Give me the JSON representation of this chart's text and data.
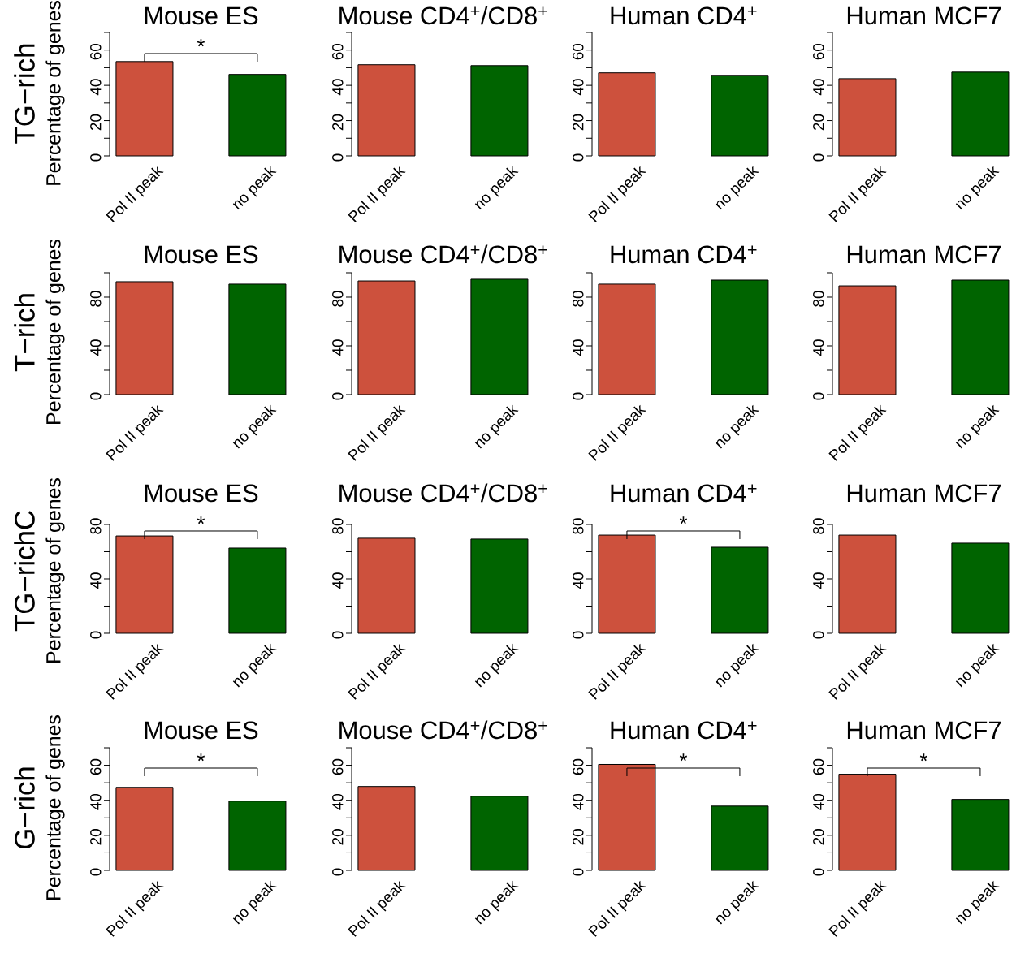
{
  "chart_data": [
    {
      "type": "bar",
      "title": "Mouse ES",
      "ylabel": "Percentage of genes",
      "categories": [
        "Pol II peak",
        "no peak"
      ],
      "values": [
        53.5,
        46.2
      ],
      "colors": [
        "#cd513d",
        "#006400"
      ],
      "ylim": [
        0,
        70
      ],
      "yticks": [
        0,
        {
          "value": 10,
          "label": null
        },
        20,
        {
          "value": 30,
          "label": null
        },
        40,
        {
          "value": 50,
          "label": null
        },
        60,
        {
          "value": 70,
          "label": null
        }
      ],
      "annotations": [
        "TG−rich",
        "*"
      ]
    },
    {
      "type": "bar",
      "title": "Mouse CD4$^{+}$/CD8$^{+}$",
      "categories": [
        "Pol II peak",
        "no peak"
      ],
      "values": [
        51.7,
        51.2
      ],
      "colors": [
        "#cd513d",
        "#006400"
      ],
      "ylim": [
        0,
        70
      ],
      "yticks": [
        0,
        {
          "value": 10,
          "label": null
        },
        20,
        {
          "value": 30,
          "label": null
        },
        40,
        {
          "value": 50,
          "label": null
        },
        60,
        {
          "value": 70,
          "label": null
        }
      ]
    },
    {
      "type": "bar",
      "title": "Human CD4$^{+}$",
      "categories": [
        "Pol II peak",
        "no peak"
      ],
      "values": [
        47.1,
        45.7
      ],
      "colors": [
        "#cd513d",
        "#006400"
      ],
      "ylim": [
        0,
        70
      ],
      "yticks": [
        0,
        {
          "value": 10,
          "label": null
        },
        20,
        {
          "value": 30,
          "label": null
        },
        40,
        {
          "value": 50,
          "label": null
        },
        60,
        {
          "value": 70,
          "label": null
        }
      ]
    },
    {
      "type": "bar",
      "title": "Human MCF7",
      "categories": [
        "Pol II peak",
        "no peak"
      ],
      "values": [
        43.8,
        47.5
      ],
      "colors": [
        "#cd513d",
        "#006400"
      ],
      "ylim": [
        0,
        70
      ],
      "yticks": [
        0,
        {
          "value": 10,
          "label": null
        },
        20,
        {
          "value": 30,
          "label": null
        },
        40,
        {
          "value": 50,
          "label": null
        },
        60,
        {
          "value": 70,
          "label": null
        }
      ]
    },
    {
      "type": "bar",
      "title": "Mouse ES",
      "ylabel": "Percentage of genes",
      "categories": [
        "Pol II peak",
        "no peak"
      ],
      "values": [
        92.7,
        90.7
      ],
      "colors": [
        "#cd513d",
        "#006400"
      ],
      "ylim": [
        0,
        100
      ],
      "yticks": [
        0,
        {
          "value": 20,
          "label": null
        },
        40,
        {
          "value": 60,
          "label": null
        },
        80,
        {
          "value": 100,
          "label": null
        }
      ],
      "annotations": [
        "T−rich"
      ]
    },
    {
      "type": "bar",
      "title": "Mouse CD4$^{+}$/CD8$^{+}$",
      "categories": [
        "Pol II peak",
        "no peak"
      ],
      "values": [
        93.3,
        94.7
      ],
      "colors": [
        "#cd513d",
        "#006400"
      ],
      "ylim": [
        0,
        100
      ],
      "yticks": [
        0,
        {
          "value": 20,
          "label": null
        },
        40,
        {
          "value": 60,
          "label": null
        },
        80,
        {
          "value": 100,
          "label": null
        }
      ]
    },
    {
      "type": "bar",
      "title": "Human CD4$^{+}$",
      "categories": [
        "Pol II peak",
        "no peak"
      ],
      "values": [
        90.7,
        94
      ],
      "colors": [
        "#cd513d",
        "#006400"
      ],
      "ylim": [
        0,
        100
      ],
      "yticks": [
        0,
        {
          "value": 20,
          "label": null
        },
        40,
        {
          "value": 60,
          "label": null
        },
        80,
        {
          "value": 100,
          "label": null
        }
      ]
    },
    {
      "type": "bar",
      "title": "Human MCF7",
      "categories": [
        "Pol II peak",
        "no peak"
      ],
      "values": [
        89.3,
        94
      ],
      "colors": [
        "#cd513d",
        "#006400"
      ],
      "ylim": [
        0,
        100
      ],
      "yticks": [
        0,
        {
          "value": 20,
          "label": null
        },
        40,
        {
          "value": 60,
          "label": null
        },
        80,
        {
          "value": 100,
          "label": null
        }
      ]
    },
    {
      "type": "bar",
      "title": "Mouse ES",
      "ylabel": "Percentage of genes",
      "categories": [
        "Pol II peak",
        "no peak"
      ],
      "values": [
        71.6,
        62.7
      ],
      "colors": [
        "#cd513d",
        "#006400"
      ],
      "ylim": [
        0,
        80
      ],
      "yticks": [
        0,
        {
          "value": 20,
          "label": null
        },
        40,
        {
          "value": 60,
          "label": null
        },
        80
      ],
      "annotations": [
        "TG−richC",
        "*"
      ]
    },
    {
      "type": "bar",
      "title": "Mouse CD4$^{+}$/CD8$^{+}$",
      "categories": [
        "Pol II peak",
        "no peak"
      ],
      "values": [
        69.9,
        69.3
      ],
      "colors": [
        "#cd513d",
        "#006400"
      ],
      "ylim": [
        0,
        80
      ],
      "yticks": [
        0,
        {
          "value": 20,
          "label": null
        },
        40,
        {
          "value": 60,
          "label": null
        },
        80
      ]
    },
    {
      "type": "bar",
      "title": "Human CD4$^{+}$",
      "categories": [
        "Pol II peak",
        "no peak"
      ],
      "values": [
        72.2,
        63.3
      ],
      "colors": [
        "#cd513d",
        "#006400"
      ],
      "ylim": [
        0,
        80
      ],
      "yticks": [
        0,
        {
          "value": 20,
          "label": null
        },
        40,
        {
          "value": 60,
          "label": null
        },
        80
      ],
      "annotations": [
        "*"
      ]
    },
    {
      "type": "bar",
      "title": "Human MCF7",
      "categories": [
        "Pol II peak",
        "no peak"
      ],
      "values": [
        72.2,
        66.3
      ],
      "colors": [
        "#cd513d",
        "#006400"
      ],
      "ylim": [
        0,
        80
      ],
      "yticks": [
        0,
        {
          "value": 20,
          "label": null
        },
        40,
        {
          "value": 60,
          "label": null
        },
        80
      ]
    },
    {
      "type": "bar",
      "title": "Mouse ES",
      "ylabel": "Percentage of genes",
      "categories": [
        "Pol II peak",
        "no peak"
      ],
      "values": [
        47.4,
        39.5
      ],
      "colors": [
        "#cd513d",
        "#006400"
      ],
      "ylim": [
        0,
        70
      ],
      "yticks": [
        0,
        {
          "value": 10,
          "label": null
        },
        20,
        {
          "value": 30,
          "label": null
        },
        40,
        {
          "value": 50,
          "label": null
        },
        60,
        {
          "value": 70,
          "label": null
        }
      ],
      "annotations": [
        "G−rich",
        "*"
      ]
    },
    {
      "type": "bar",
      "title": "Mouse CD4$^{+}$/CD8$^{+}$",
      "categories": [
        "Pol II peak",
        "no peak"
      ],
      "values": [
        47.9,
        42.3
      ],
      "colors": [
        "#cd513d",
        "#006400"
      ],
      "ylim": [
        0,
        70
      ],
      "yticks": [
        0,
        {
          "value": 10,
          "label": null
        },
        20,
        {
          "value": 30,
          "label": null
        },
        40,
        {
          "value": 50,
          "label": null
        },
        60,
        {
          "value": 70,
          "label": null
        }
      ]
    },
    {
      "type": "bar",
      "title": "Human CD4$^{+}$",
      "categories": [
        "Pol II peak",
        "no peak"
      ],
      "values": [
        60.5,
        36.7
      ],
      "colors": [
        "#cd513d",
        "#006400"
      ],
      "ylim": [
        0,
        70
      ],
      "yticks": [
        0,
        {
          "value": 10,
          "label": null
        },
        20,
        {
          "value": 30,
          "label": null
        },
        40,
        {
          "value": 50,
          "label": null
        },
        60,
        {
          "value": 70,
          "label": null
        }
      ],
      "annotations": [
        "*"
      ]
    },
    {
      "type": "bar",
      "title": "Human MCF7",
      "categories": [
        "Pol II peak",
        "no peak"
      ],
      "values": [
        54.9,
        40.5
      ],
      "colors": [
        "#cd513d",
        "#006400"
      ],
      "ylim": [
        0,
        70
      ],
      "yticks": [
        0,
        {
          "value": 10,
          "label": null
        },
        20,
        {
          "value": 30,
          "label": null
        },
        40,
        {
          "value": 50,
          "label": null
        },
        60,
        {
          "value": 70,
          "label": null
        }
      ],
      "annotations": [
        "*"
      ]
    }
  ]
}
